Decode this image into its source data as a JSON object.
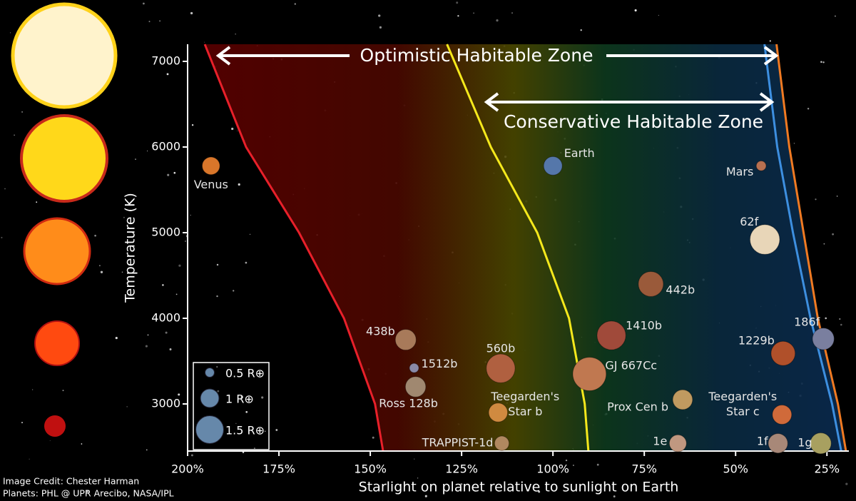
{
  "chart_data": {
    "type": "scatter",
    "xlabel": "Starlight on planet relative to sunlight on Earth",
    "ylabel": "Temperature (K)",
    "xlim": [
      200,
      19
    ],
    "ylim": [
      2450,
      7200
    ],
    "xticks": [
      {
        "value": 200,
        "label": "200%"
      },
      {
        "value": 175,
        "label": "175%"
      },
      {
        "value": 150,
        "label": "150%"
      },
      {
        "value": 125,
        "label": "125%"
      },
      {
        "value": 100,
        "label": "100%"
      },
      {
        "value": 75,
        "label": "75%"
      },
      {
        "value": 50,
        "label": "50%"
      },
      {
        "value": 25,
        "label": "25%"
      }
    ],
    "yticks": [
      3000,
      4000,
      5000,
      6000,
      7000
    ],
    "annotations": [
      "Optimistic Habitable Zone",
      "Conservative Habitable Zone"
    ],
    "credits": [
      "Image Credit: Chester Harman",
      "Planets:  PHL @ UPR Arecibo, NASA/IPL"
    ],
    "boundaries": [
      {
        "color": "#e8202a",
        "x": [
          195.3,
          184,
          169.5,
          157.2,
          148.7,
          146.5
        ],
        "y": [
          7200,
          6000,
          5000,
          4000,
          3000,
          2450
        ]
      },
      {
        "color": "#f5e81c",
        "x": [
          129,
          117,
          104.3,
          95.6,
          91.3,
          90.3
        ],
        "y": [
          7200,
          6000,
          5000,
          4000,
          3000,
          2450
        ]
      },
      {
        "color": "#3d8fe0",
        "x": [
          42.1,
          38.6,
          34.3,
          29.5,
          23.6,
          21.1
        ],
        "y": [
          7200,
          6000,
          5000,
          4000,
          3000,
          2450
        ]
      },
      {
        "color": "#f07a22",
        "x": [
          38.8,
          35.3,
          31.4,
          27.5,
          22,
          19.8
        ],
        "y": [
          7200,
          6000,
          5000,
          4000,
          3000,
          2450
        ]
      }
    ],
    "legend_sizes": [
      {
        "value": 0.5,
        "label": "0.5 R⊕"
      },
      {
        "value": 1,
        "label": "1 R⊕"
      },
      {
        "value": 1.5,
        "label": "1.5 R⊕"
      }
    ],
    "points": [
      {
        "label": "Venus",
        "x": 193.6,
        "y": 5780,
        "radius": 0.95,
        "color": "#d9762a"
      },
      {
        "label": "Earth",
        "x": 100,
        "y": 5780,
        "radius": 1,
        "color": "#5577aa"
      },
      {
        "label": "Mars",
        "x": 43,
        "y": 5780,
        "radius": 0.53,
        "color": "#b87050"
      },
      {
        "label": "62f",
        "x": 42,
        "y": 4920,
        "radius": 1.6,
        "color": "#e8d6b8"
      },
      {
        "label": "442b",
        "x": 73.2,
        "y": 4400,
        "radius": 1.35,
        "color": "#9a5a3a"
      },
      {
        "label": "1410b",
        "x": 84,
        "y": 3800,
        "radius": 1.55,
        "color": "#a04a3a"
      },
      {
        "label": "438b",
        "x": 140.3,
        "y": 3750,
        "radius": 1.12,
        "color": "#a87a5a"
      },
      {
        "label": "186f",
        "x": 26,
        "y": 3760,
        "radius": 1.17,
        "color": "#7a7f9f"
      },
      {
        "label": "1229b",
        "x": 37,
        "y": 3590,
        "radius": 1.3,
        "color": "#b0502a"
      },
      {
        "label": "1512b",
        "x": 138,
        "y": 3420,
        "radius": 0.5,
        "color": "#8a8aa8"
      },
      {
        "label": "560b",
        "x": 114.3,
        "y": 3415,
        "radius": 1.55,
        "color": "#b06040"
      },
      {
        "label": "GJ 667Cc",
        "x": 90,
        "y": 3350,
        "radius": 1.8,
        "color": "#c07850"
      },
      {
        "label": "Ross 128b",
        "x": 137.6,
        "y": 3200,
        "radius": 1.1,
        "color": "#a08870"
      },
      {
        "label": "Prox Cen b",
        "x": 64.5,
        "y": 3050,
        "radius": 1.07,
        "color": "#c09a60"
      },
      {
        "label": "Teegarden's Star b",
        "x": 115,
        "y": 2900,
        "radius": 1.02,
        "color": "#d08a40"
      },
      {
        "label": "Teegarden's Star c",
        "x": 37.3,
        "y": 2875,
        "radius": 1.04,
        "color": "#d06a3a"
      },
      {
        "label": "TRAPPIST-1d",
        "x": 114,
        "y": 2540,
        "radius": 0.78,
        "color": "#b08860"
      },
      {
        "label": "1e",
        "x": 65.8,
        "y": 2540,
        "radius": 0.92,
        "color": "#c09880"
      },
      {
        "label": "1f",
        "x": 38.4,
        "y": 2540,
        "radius": 1.05,
        "color": "#a88878"
      },
      {
        "label": "1g",
        "x": 26.7,
        "y": 2540,
        "radius": 1.13,
        "color": "#a8a060"
      }
    ]
  }
}
